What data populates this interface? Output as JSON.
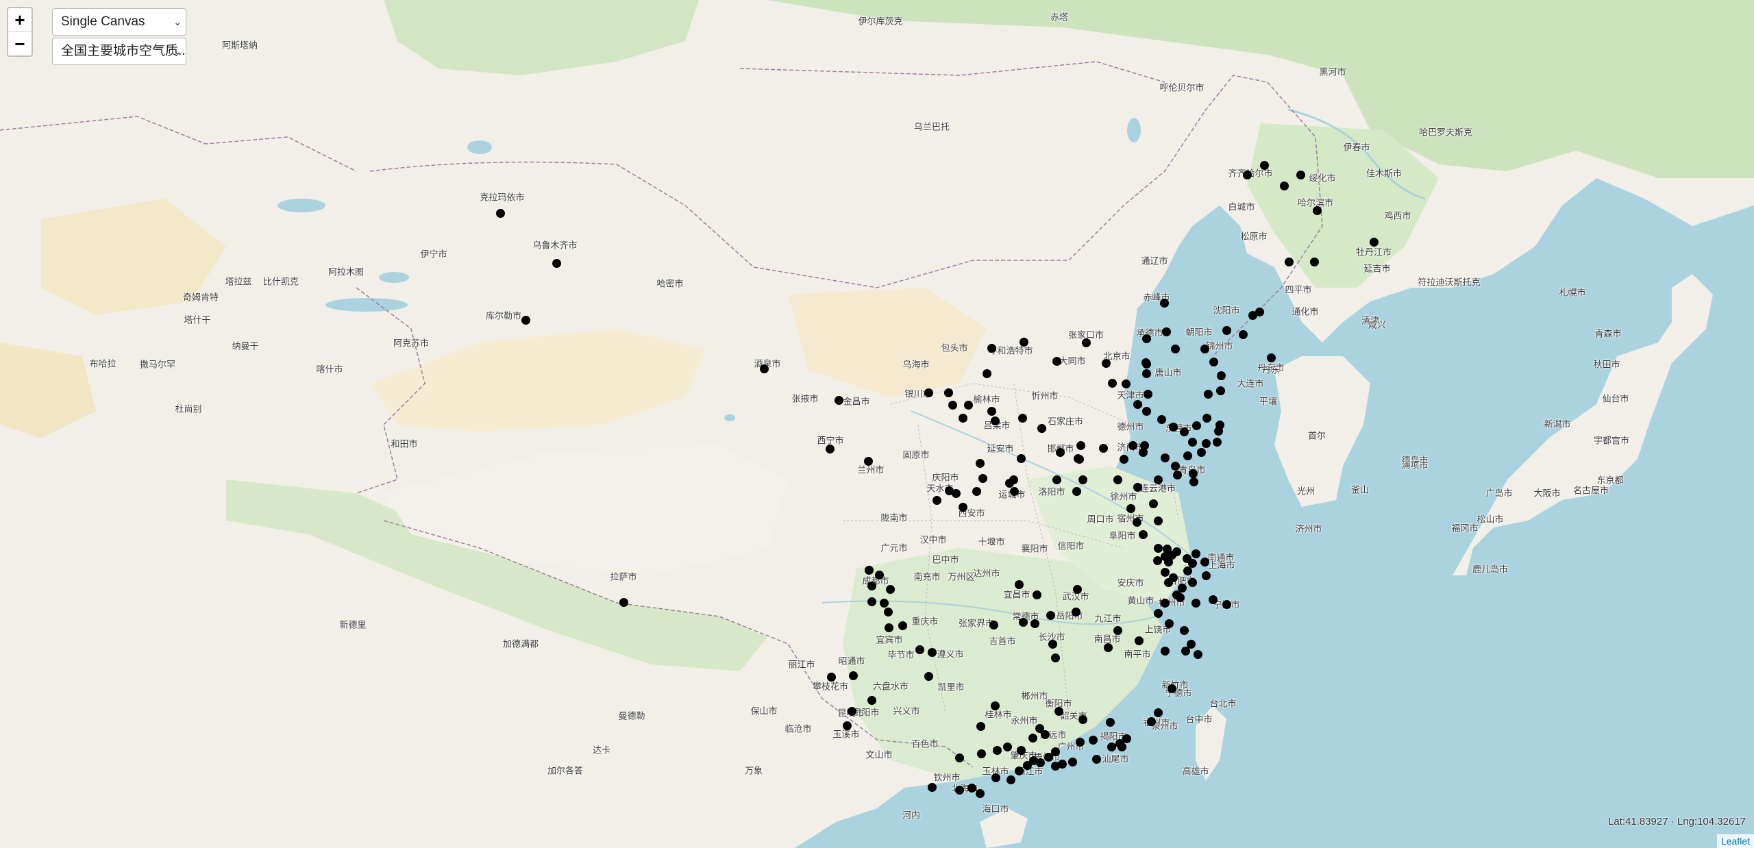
{
  "controls": {
    "zoom_in": "+",
    "zoom_out": "−",
    "canvas_select": "Single Canvas",
    "layer_select": "全国主要城市空气质..."
  },
  "status": {
    "coords": "Lat:41.83927 · Lng:104.32617",
    "attribution": "Leaflet"
  },
  "map": {
    "marker_color": "#000000",
    "city_labels": [
      "呼伦贝尔市",
      "齐齐哈尔市",
      "绥化市",
      "佳木斯市",
      "黑河市",
      "伊春市",
      "哈尔滨市",
      "鸡西市",
      "白城市",
      "松原市",
      "牡丹江市",
      "延吉市",
      "四平市",
      "通辽市",
      "赤峰市",
      "承德市",
      "沈阳市",
      "通化市",
      "朝阳市",
      "锦州市",
      "丹东市",
      "大连市",
      "唐山市",
      "北京市",
      "天津市",
      "张家口市",
      "大同市",
      "呼和浩特市",
      "包头市",
      "乌海市",
      "银川市",
      "榆林市",
      "忻州市",
      "石家庄市",
      "吕梁市",
      "德州市",
      "东营市",
      "延安市",
      "邯郸市",
      "济南市",
      "青岛市",
      "西宁市",
      "兰州市",
      "张掖市",
      "金昌市",
      "酒泉市",
      "固原市",
      "庆阳市",
      "天水市",
      "西安市",
      "运城市",
      "洛阳市",
      "周口市",
      "宿州市",
      "徐州市",
      "连云港市",
      "阜阳市",
      "陇南市",
      "汉中市",
      "十堰市",
      "襄阳市",
      "信阳市",
      "广元市",
      "巴中市",
      "南充市",
      "达州市",
      "万州区",
      "成都市",
      "宜宾市",
      "重庆市",
      "张家界市",
      "宜昌市",
      "常德市",
      "岳阳市",
      "武汉市",
      "九江市",
      "安庆市",
      "合肥市",
      "南通市",
      "上海市",
      "杭州市",
      "宁波市",
      "黄山市",
      "上饶市",
      "南昌市",
      "长沙市",
      "吉首市",
      "毕节市",
      "遵义市",
      "六盘水市",
      "贵阳市",
      "凯里市",
      "昭通市",
      "攀枝花市",
      "丽江市",
      "保山市",
      "昆明市",
      "玉溪市",
      "临沧市",
      "兴义市",
      "百色市",
      "文山市",
      "桂林市",
      "永州市",
      "郴州市",
      "衡阳市",
      "南平市",
      "宁德市",
      "福州市",
      "泉州市",
      "韶关市",
      "广州市",
      "揭阳市",
      "汕尾市",
      "清远市",
      "肇庆市",
      "玉林市",
      "钦州市",
      "北海市",
      "海口市",
      "阳江市",
      "梧州市",
      "克拉玛依市",
      "乌鲁木齐市",
      "伊宁市",
      "库尔勒市",
      "阿克苏市",
      "喀什市",
      "和田市",
      "哈密市",
      "拉萨市",
      "乌兰巴托",
      "伊尔库茨克",
      "赤塔",
      "哈巴罗夫斯克",
      "符拉迪沃斯托克",
      "札幌市",
      "青森市",
      "秋田市",
      "仙台市",
      "新潟市",
      "宇都宫市",
      "东京都",
      "名古屋市",
      "大阪市",
      "广岛市",
      "松山市",
      "福冈市",
      "鹿儿岛市",
      "德岛市",
      "首尔",
      "光州",
      "釜山",
      "浦项市",
      "济州市",
      "丹东",
      "平壤",
      "清津",
      "咸兴",
      "阿斯塔纳",
      "阿拉木图",
      "比什凯克",
      "塔拉兹",
      "奇姆肯特",
      "塔什干",
      "撒马尔罕",
      "杜尚别",
      "纳曼干",
      "布哈拉",
      "新德里",
      "加德满都",
      "达卡",
      "加尔各答",
      "曼德勒",
      "河内",
      "万象",
      "台北市",
      "高雄市",
      "台中市",
      "新竹市"
    ]
  }
}
